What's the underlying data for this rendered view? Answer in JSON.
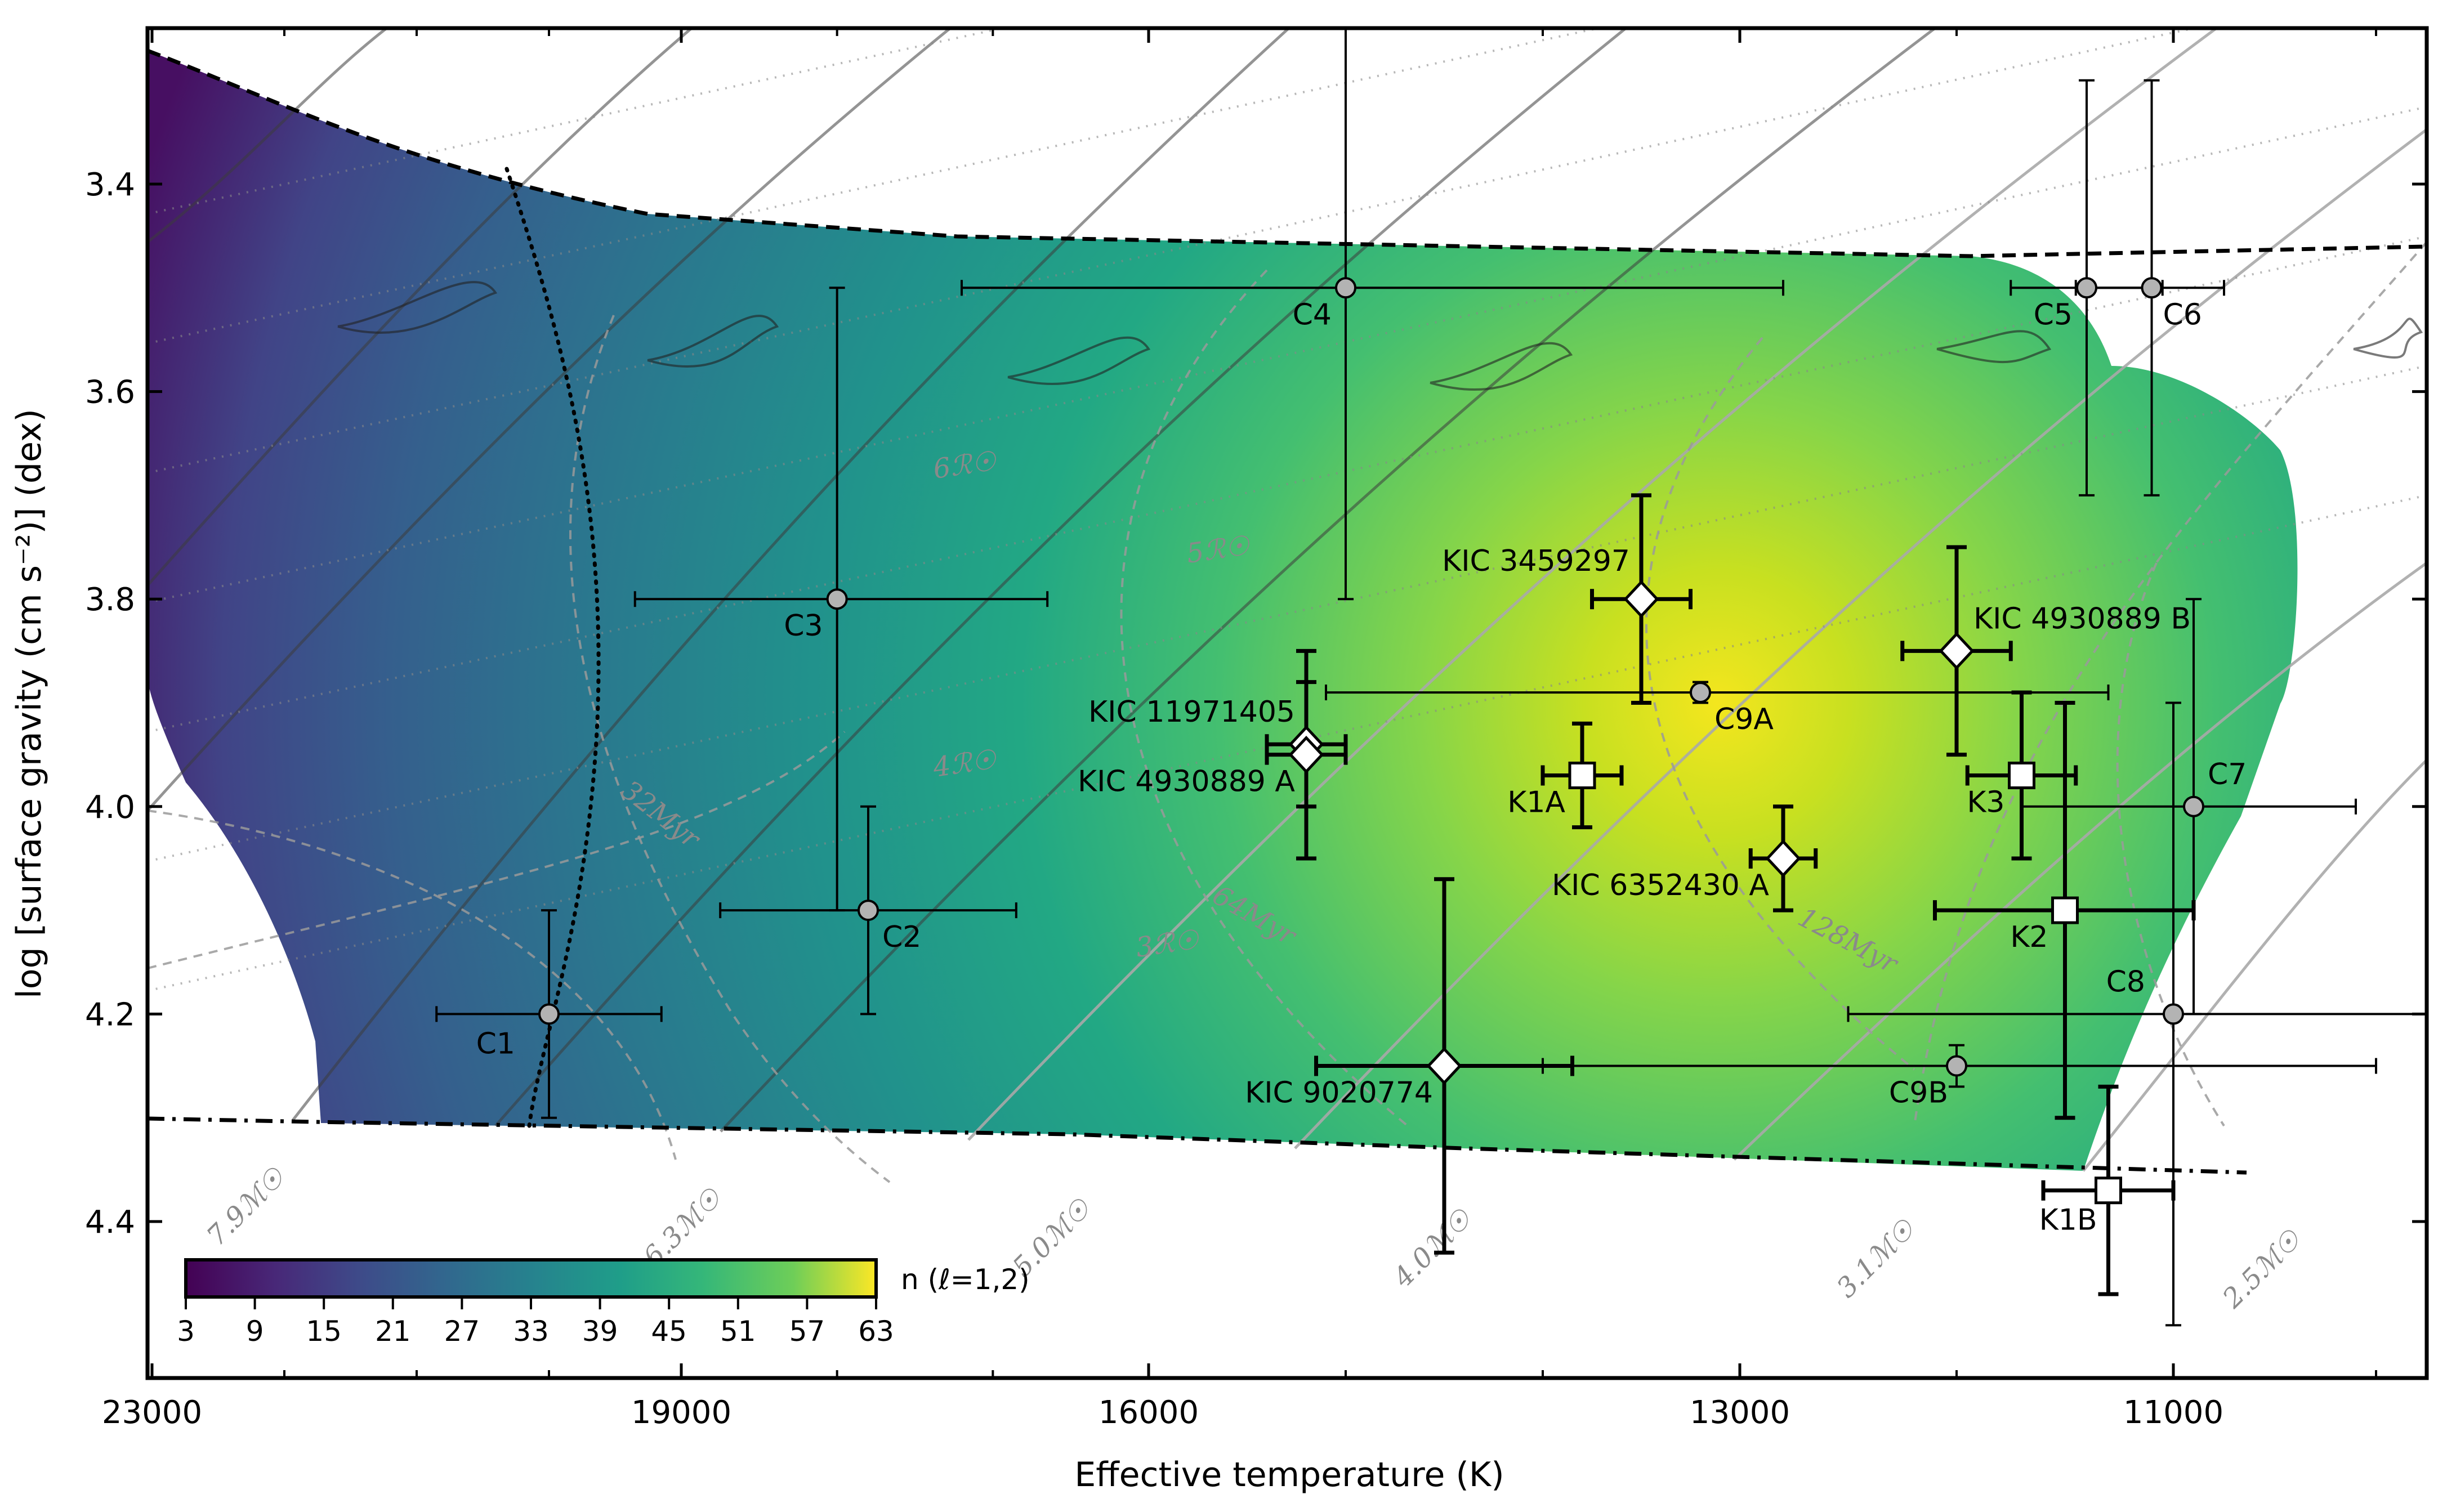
{
  "chart_data": {
    "type": "scatter",
    "xlabel": "Effective temperature (K)",
    "ylabel": "log [surface gravity (cm s⁻²)] (dex)",
    "xlim": [
      23000,
      9000
    ],
    "ylim": [
      4.53,
      3.25
    ],
    "x_reversed": true,
    "y_reversed": true,
    "x_ticks": [
      23000,
      19000,
      16000,
      13000,
      11000
    ],
    "y_ticks": [
      3.4,
      3.6,
      3.8,
      4.0,
      4.2,
      4.4
    ],
    "x_tick_labels": [
      "23000",
      "19000",
      "16000",
      "13000",
      "11000"
    ],
    "y_tick_labels": [
      "3.4",
      "3.6",
      "3.8",
      "4.0",
      "4.2",
      "4.4"
    ],
    "colorbar": {
      "label": "n (ℓ=1,2)",
      "range": [
        3,
        63
      ],
      "ticks": [
        "3",
        "9",
        "15",
        "21",
        "27",
        "33",
        "39",
        "45",
        "51",
        "57",
        "63"
      ],
      "colormap": [
        "#440154",
        "#3b528b",
        "#21918c",
        "#5ec962",
        "#fde725"
      ]
    },
    "heatmap_peak": {
      "teff": 12900,
      "logg": 3.95
    },
    "circles": [
      {
        "label": "C1",
        "teff": 20000,
        "logg": 4.2,
        "xerr": [
          850,
          850
        ],
        "yerr": [
          0.1,
          0.1
        ]
      },
      {
        "label": "C2",
        "teff": 17800,
        "logg": 4.1,
        "xerr": [
          950,
          950
        ],
        "yerr": [
          0.1,
          0.1
        ]
      },
      {
        "label": "C3",
        "teff": 18000,
        "logg": 3.8,
        "xerr": [
          1350,
          1350
        ],
        "yerr": [
          0.3,
          0.3
        ]
      },
      {
        "label": "C4",
        "teff": 15000,
        "logg": 3.5,
        "xerr": [
          2200,
          2200
        ],
        "yerr": [
          0.3,
          0.3
        ]
      },
      {
        "label": "C5",
        "teff": 11400,
        "logg": 3.5,
        "xerr": [
          350,
          350
        ],
        "yerr": [
          0.2,
          0.2
        ]
      },
      {
        "label": "C6",
        "teff": 11100,
        "logg": 3.5,
        "xerr": [
          350,
          350
        ],
        "yerr": [
          0.2,
          0.2
        ]
      },
      {
        "label": "C7",
        "teff": 10900,
        "logg": 4.0,
        "xerr": [
          800,
          800
        ],
        "yerr": [
          0.2,
          0.2
        ]
      },
      {
        "label": "C8",
        "teff": 11000,
        "logg": 4.2,
        "xerr": [
          1500,
          1500
        ],
        "yerr": [
          0.3,
          0.3
        ]
      },
      {
        "label": "C9A",
        "teff": 13200,
        "logg": 3.89,
        "xerr": [
          1900,
          1900
        ],
        "yerr": [
          0.01,
          0.01
        ]
      },
      {
        "label": "C9B",
        "teff": 12000,
        "logg": 4.25,
        "xerr": [
          2000,
          2000
        ],
        "yerr": [
          0.02,
          0.02
        ]
      }
    ],
    "squares": [
      {
        "label": "K1A",
        "teff": 13800,
        "logg": 3.97,
        "xerr": [
          200,
          200
        ],
        "yerr": [
          0.05,
          0.05
        ]
      },
      {
        "label": "K1B",
        "teff": 11300,
        "logg": 4.37,
        "xerr": [
          300,
          300
        ],
        "yerr": [
          0.1,
          0.1
        ]
      },
      {
        "label": "K2",
        "teff": 11500,
        "logg": 4.1,
        "xerr": [
          600,
          600
        ],
        "yerr": [
          0.2,
          0.2
        ]
      },
      {
        "label": "K3",
        "teff": 11700,
        "logg": 3.97,
        "xerr": [
          250,
          250
        ],
        "yerr": [
          0.08,
          0.08
        ]
      }
    ],
    "diamonds": [
      {
        "label": "KIC 3459297",
        "teff": 13500,
        "logg": 3.8,
        "xerr": [
          250,
          250
        ],
        "yerr": [
          0.1,
          0.1
        ]
      },
      {
        "label": "KIC 4930889 B",
        "teff": 12000,
        "logg": 3.85,
        "xerr": [
          250,
          250
        ],
        "yerr": [
          0.1,
          0.1
        ]
      },
      {
        "label": "KIC 11971405",
        "teff": 15200,
        "logg": 3.94,
        "xerr": [
          200,
          200
        ],
        "yerr": [
          0.06,
          0.06
        ]
      },
      {
        "label": "KIC 4930889 A",
        "teff": 15200,
        "logg": 3.95,
        "xerr": [
          200,
          200
        ],
        "yerr": [
          0.1,
          0.1
        ]
      },
      {
        "label": "KIC 6352430 A",
        "teff": 12800,
        "logg": 4.05,
        "xerr": [
          150,
          150
        ],
        "yerr": [
          0.05,
          0.05
        ]
      },
      {
        "label": "KIC 9020774",
        "teff": 14500,
        "logg": 4.25,
        "xerr": [
          650,
          650
        ],
        "yerr": [
          0.18,
          0.18
        ]
      }
    ],
    "mass_tracks": [
      {
        "label": "7.9ℳ☉",
        "teff": 22500,
        "logg": 4.3,
        "color": "#555555"
      },
      {
        "label": "6.3ℳ☉",
        "teff": 19200,
        "logg": 4.32,
        "color": "#555555"
      },
      {
        "label": "5.0ℳ☉",
        "teff": 16800,
        "logg": 4.33,
        "color": "#555555"
      },
      {
        "label": "4.0ℳ☉",
        "teff": 14700,
        "logg": 4.34,
        "color": "#777777"
      },
      {
        "label": "3.1ℳ☉",
        "teff": 12500,
        "logg": 4.35,
        "color": "#999999"
      },
      {
        "label": "2.5ℳ☉",
        "teff": 10700,
        "logg": 4.36,
        "color": "#aaaaaa"
      }
    ],
    "isochrones": [
      "32Myr",
      "64Myr",
      "128Myr"
    ],
    "radii": [
      "6ℛ☉",
      "5ℛ☉",
      "4ℛ☉",
      "3ℛ☉"
    ]
  }
}
